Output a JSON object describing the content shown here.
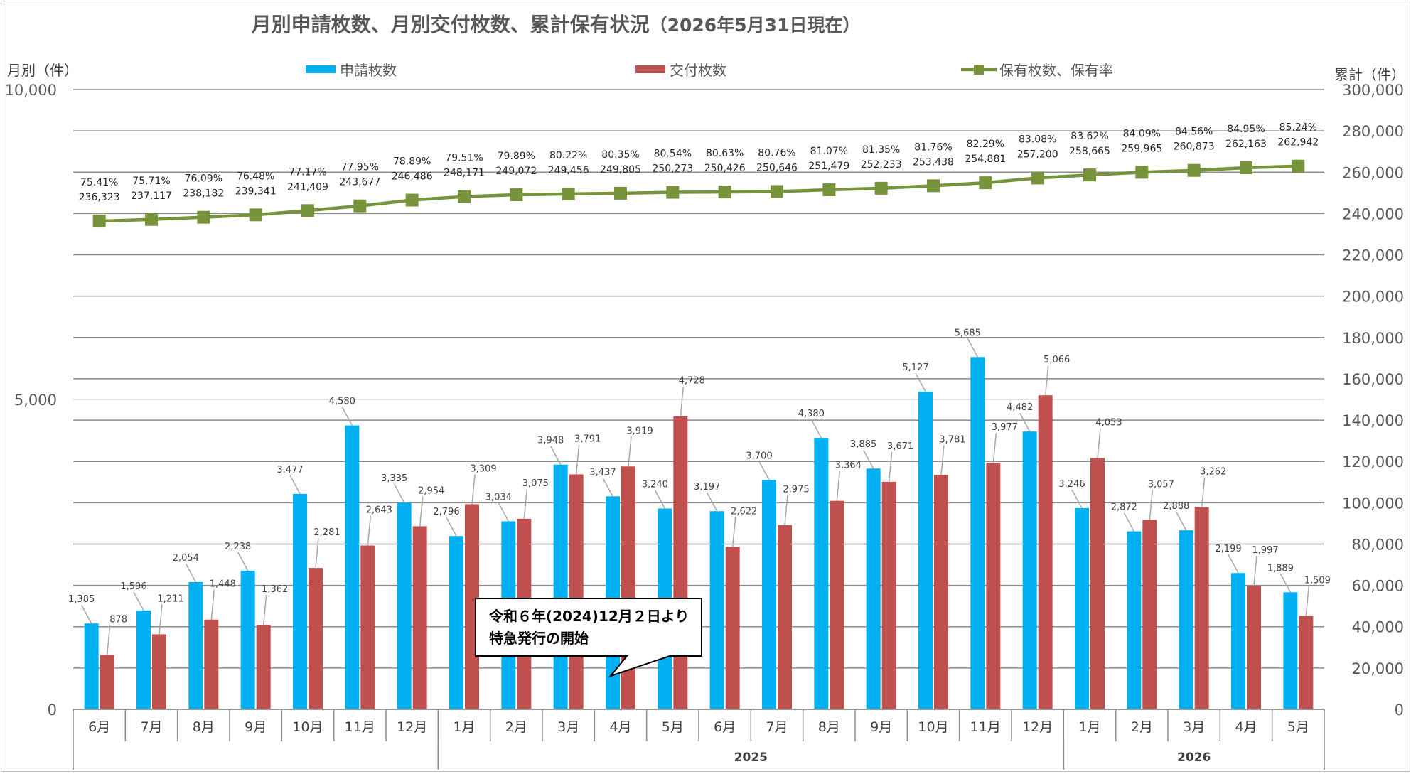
{
  "chart_data": {
    "type": "bar",
    "title": "月別申請枚数、月別交付枚数、累計保有状況",
    "title_suffix": "（2026年5月31日現在）",
    "left_axis_label": "月別（件）",
    "right_axis_label": "累計（件）",
    "categories": [
      "6月",
      "7月",
      "8月",
      "9月",
      "10月",
      "11月",
      "12月",
      "1月",
      "2月",
      "3月",
      "4月",
      "5月",
      "6月",
      "7月",
      "8月",
      "9月",
      "10月",
      "11月",
      "12月",
      "1月",
      "2月",
      "3月",
      "4月",
      "5月"
    ],
    "year_groups": [
      {
        "label": "",
        "from": 0,
        "to": 6
      },
      {
        "label": "2025",
        "from": 7,
        "to": 18
      },
      {
        "label": "2026",
        "from": 19,
        "to": 23
      }
    ],
    "left_axis": {
      "min": 0,
      "max": 10000,
      "ticks": [
        0,
        5000,
        10000
      ],
      "tick_labels": [
        "0",
        "5,000",
        "10,000"
      ]
    },
    "right_axis": {
      "min": 0,
      "max": 300000,
      "step": 20000,
      "tick_labels": [
        "0",
        "20,000",
        "40,000",
        "60,000",
        "80,000",
        "100,000",
        "120,000",
        "140,000",
        "160,000",
        "180,000",
        "200,000",
        "220,000",
        "240,000",
        "260,000",
        "280,000",
        "300,000"
      ]
    },
    "series": [
      {
        "name": "申請枚数",
        "type": "bar",
        "color": "#00b0f0",
        "values": [
          1385,
          1596,
          2054,
          2238,
          3477,
          4580,
          3335,
          2796,
          3034,
          3948,
          3437,
          3240,
          3197,
          3700,
          4380,
          3885,
          5127,
          5685,
          4482,
          3246,
          2872,
          2888,
          2199,
          1889
        ],
        "labels": [
          "1,385",
          "1,596",
          "2,054",
          "2,238",
          "3,477",
          "4,580",
          "3,335",
          "2,796",
          "3,034",
          "3,948",
          "3,437",
          "3,240",
          "3,197",
          "3,700",
          "4,380",
          "3,885",
          "5,127",
          "5,685",
          "4,482",
          "3,246",
          "2,872",
          "2,888",
          "2,199",
          "1,889"
        ]
      },
      {
        "name": "交付枚数",
        "type": "bar",
        "color": "#c0504d",
        "values": [
          878,
          1211,
          1448,
          1362,
          2281,
          2643,
          2954,
          3309,
          3075,
          3791,
          3919,
          4728,
          2622,
          2975,
          3364,
          3671,
          3781,
          3977,
          5066,
          4053,
          3057,
          3262,
          1997,
          1509
        ],
        "labels": [
          "878",
          "1,211",
          "1,448",
          "1,362",
          "2,281",
          "2,643",
          "2,954",
          "3,309",
          "3,075",
          "3,791",
          "3,919",
          "4,728",
          "2,622",
          "2,975",
          "3,364",
          "3,671",
          "3,781",
          "3,977",
          "5,066",
          "4,053",
          "3,057",
          "3,262",
          "1,997",
          "1,509"
        ]
      },
      {
        "name": "保有枚数、保有率",
        "type": "line",
        "color": "#77933c",
        "values": [
          236323,
          237117,
          238182,
          239341,
          241409,
          243677,
          246486,
          248171,
          249072,
          249456,
          249805,
          250273,
          250426,
          250646,
          251479,
          252233,
          253438,
          254881,
          257200,
          258665,
          259965,
          260873,
          262163,
          262942
        ],
        "labels": [
          "236,323",
          "237,117",
          "238,182",
          "239,341",
          "241,409",
          "243,677",
          "246,486",
          "248,171",
          "249,072",
          "249,456",
          "249,805",
          "250,273",
          "250,426",
          "250,646",
          "251,479",
          "252,233",
          "253,438",
          "254,881",
          "257,200",
          "258,665",
          "259,965",
          "260,873",
          "262,163",
          "262,942"
        ],
        "rates": [
          "75.41%",
          "75.71%",
          "76.09%",
          "76.48%",
          "77.17%",
          "77.95%",
          "78.89%",
          "79.51%",
          "79.89%",
          "80.22%",
          "80.35%",
          "80.54%",
          "80.63%",
          "80.76%",
          "81.07%",
          "81.35%",
          "81.76%",
          "82.29%",
          "83.08%",
          "83.62%",
          "84.09%",
          "84.56%",
          "84.95%",
          "85.24%"
        ]
      }
    ],
    "annotation": {
      "lines": [
        "令和６年(2024)12月２日より",
        "特急発行の開始"
      ]
    }
  }
}
